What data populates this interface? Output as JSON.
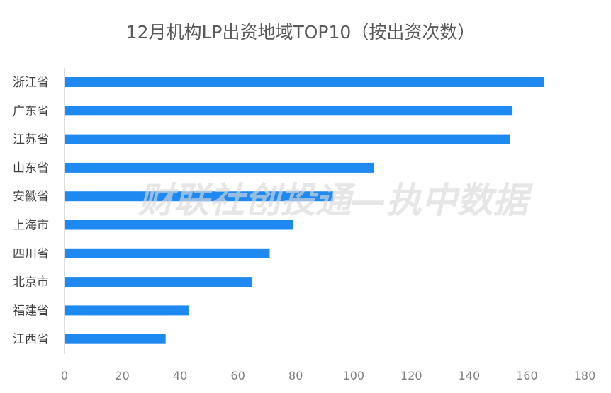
{
  "chart_data": {
    "type": "bar",
    "orientation": "horizontal",
    "title": "12月机构LP出资地域TOP10（按出资次数）",
    "categories": [
      "浙江省",
      "广东省",
      "江苏省",
      "山东省",
      "安徽省",
      "上海市",
      "四川省",
      "北京市",
      "福建省",
      "江西省"
    ],
    "values": [
      166,
      155,
      154,
      107,
      93,
      79,
      71,
      65,
      43,
      35
    ],
    "xlim": [
      0,
      180
    ],
    "xticks": [
      0,
      20,
      40,
      60,
      80,
      100,
      120,
      140,
      160,
      180
    ],
    "xlabel": "",
    "ylabel": "",
    "grid": false,
    "legend": false,
    "bar_color": "#1f89f2"
  },
  "watermark": "财联社创投通—执中数据"
}
